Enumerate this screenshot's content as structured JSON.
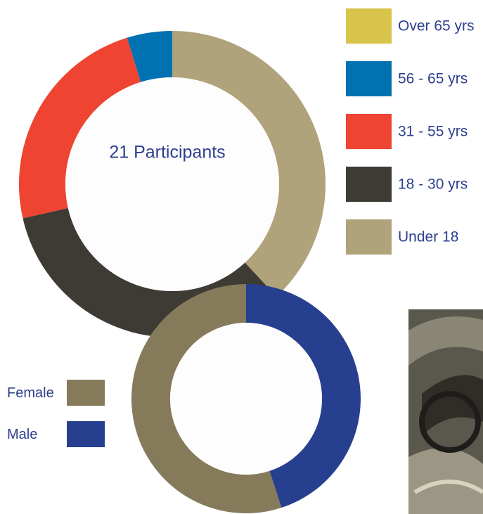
{
  "chart_data": [
    {
      "type": "donut",
      "center_label": "21 Participants",
      "categories": [
        "Over 65 yrs",
        "56 - 65 yrs",
        "31 - 55 yrs",
        "18 - 30 yrs",
        "Under 18"
      ],
      "values": [
        0,
        1,
        5,
        7,
        8
      ],
      "colors": [
        "#d8c34b",
        "#0071b1",
        "#ee4431",
        "#3d3b34",
        "#b0a27b"
      ]
    },
    {
      "type": "donut",
      "categories": [
        "Female",
        "Male"
      ],
      "values": [
        55,
        45
      ],
      "colors": [
        "#857a5a",
        "#263f8e"
      ]
    }
  ]
}
